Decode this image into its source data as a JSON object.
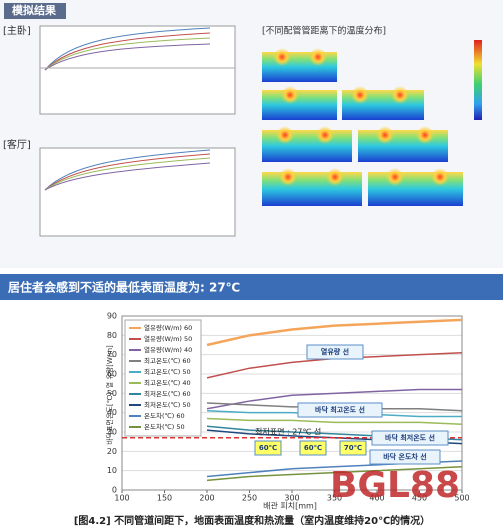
{
  "header": {
    "title": "模拟结果"
  },
  "panels": {
    "bedroom": "[主卧]",
    "living": "[客厅]",
    "heatmap_title": "[不同配管管距离下的温度分布]"
  },
  "banner": "居住者会感到不适的最低表面温度为: 27℃",
  "chart_data": {
    "type": "line",
    "x_label": "배관 피치[mm]",
    "y_label": "바닥표면온도[℃], 열 유량[W/m]",
    "x": [
      200,
      250,
      300,
      350,
      400,
      450,
      500
    ],
    "xlim": [
      100,
      500
    ],
    "xticks": [
      100,
      150,
      200,
      250,
      300,
      350,
      400,
      450,
      500
    ],
    "ylim": [
      0,
      90
    ],
    "yticks": [
      0,
      10,
      20,
      30,
      40,
      50,
      60,
      70,
      80,
      90
    ],
    "grid": true,
    "legend": "upper left",
    "series": [
      {
        "name": "열유량(W/m) 60",
        "color": "#f5a55a",
        "values": [
          75,
          80,
          83,
          85,
          86,
          87,
          88
        ]
      },
      {
        "name": "열유량(W/m) 50",
        "color": "#c0504d",
        "values": [
          58,
          63,
          66,
          68,
          69,
          70,
          71
        ]
      },
      {
        "name": "열유량(W/m) 40",
        "color": "#8064a2",
        "values": [
          42,
          46,
          49,
          50,
          51,
          52,
          52
        ]
      },
      {
        "name": "최고온도(℃) 60",
        "color": "#7f7f7f",
        "values": [
          45,
          44,
          43,
          43,
          42,
          42,
          41
        ]
      },
      {
        "name": "최고온도(℃) 50",
        "color": "#4bacc6",
        "values": [
          41,
          40,
          40,
          39,
          39,
          38,
          38
        ]
      },
      {
        "name": "최고온도(℃) 40",
        "color": "#9bbb59",
        "values": [
          37,
          36,
          36,
          35,
          35,
          35,
          34
        ]
      },
      {
        "name": "최저온도(℃) 60",
        "color": "#31859c",
        "values": [
          33,
          31,
          30,
          29,
          28,
          27,
          26
        ]
      },
      {
        "name": "최저온도(℃) 50",
        "color": "#1f497d",
        "values": [
          31,
          29,
          28,
          27,
          26,
          25,
          24
        ]
      },
      {
        "name": "온도차(℃) 60",
        "color": "#4f81bd",
        "values": [
          7,
          9,
          11,
          12,
          13,
          14,
          15
        ]
      },
      {
        "name": "온도차(℃) 50",
        "color": "#76923c",
        "values": [
          5,
          7,
          8,
          9,
          10,
          11,
          12
        ]
      }
    ],
    "ref_line": {
      "value": 27,
      "label": "최저표면 : 27℃ 선",
      "color": "#e03030"
    },
    "annotations": [
      "열유량 선",
      "바닥 최고온도 선",
      "바닥 최저온도 선",
      "바닥 온도차 선",
      "60℃",
      "60℃",
      "70℃"
    ]
  },
  "caption": "[图4.2] 不同管道间距下，地面表面温度和热流量（室内温度维持20℃的情况）",
  "watermark": "BGL88"
}
